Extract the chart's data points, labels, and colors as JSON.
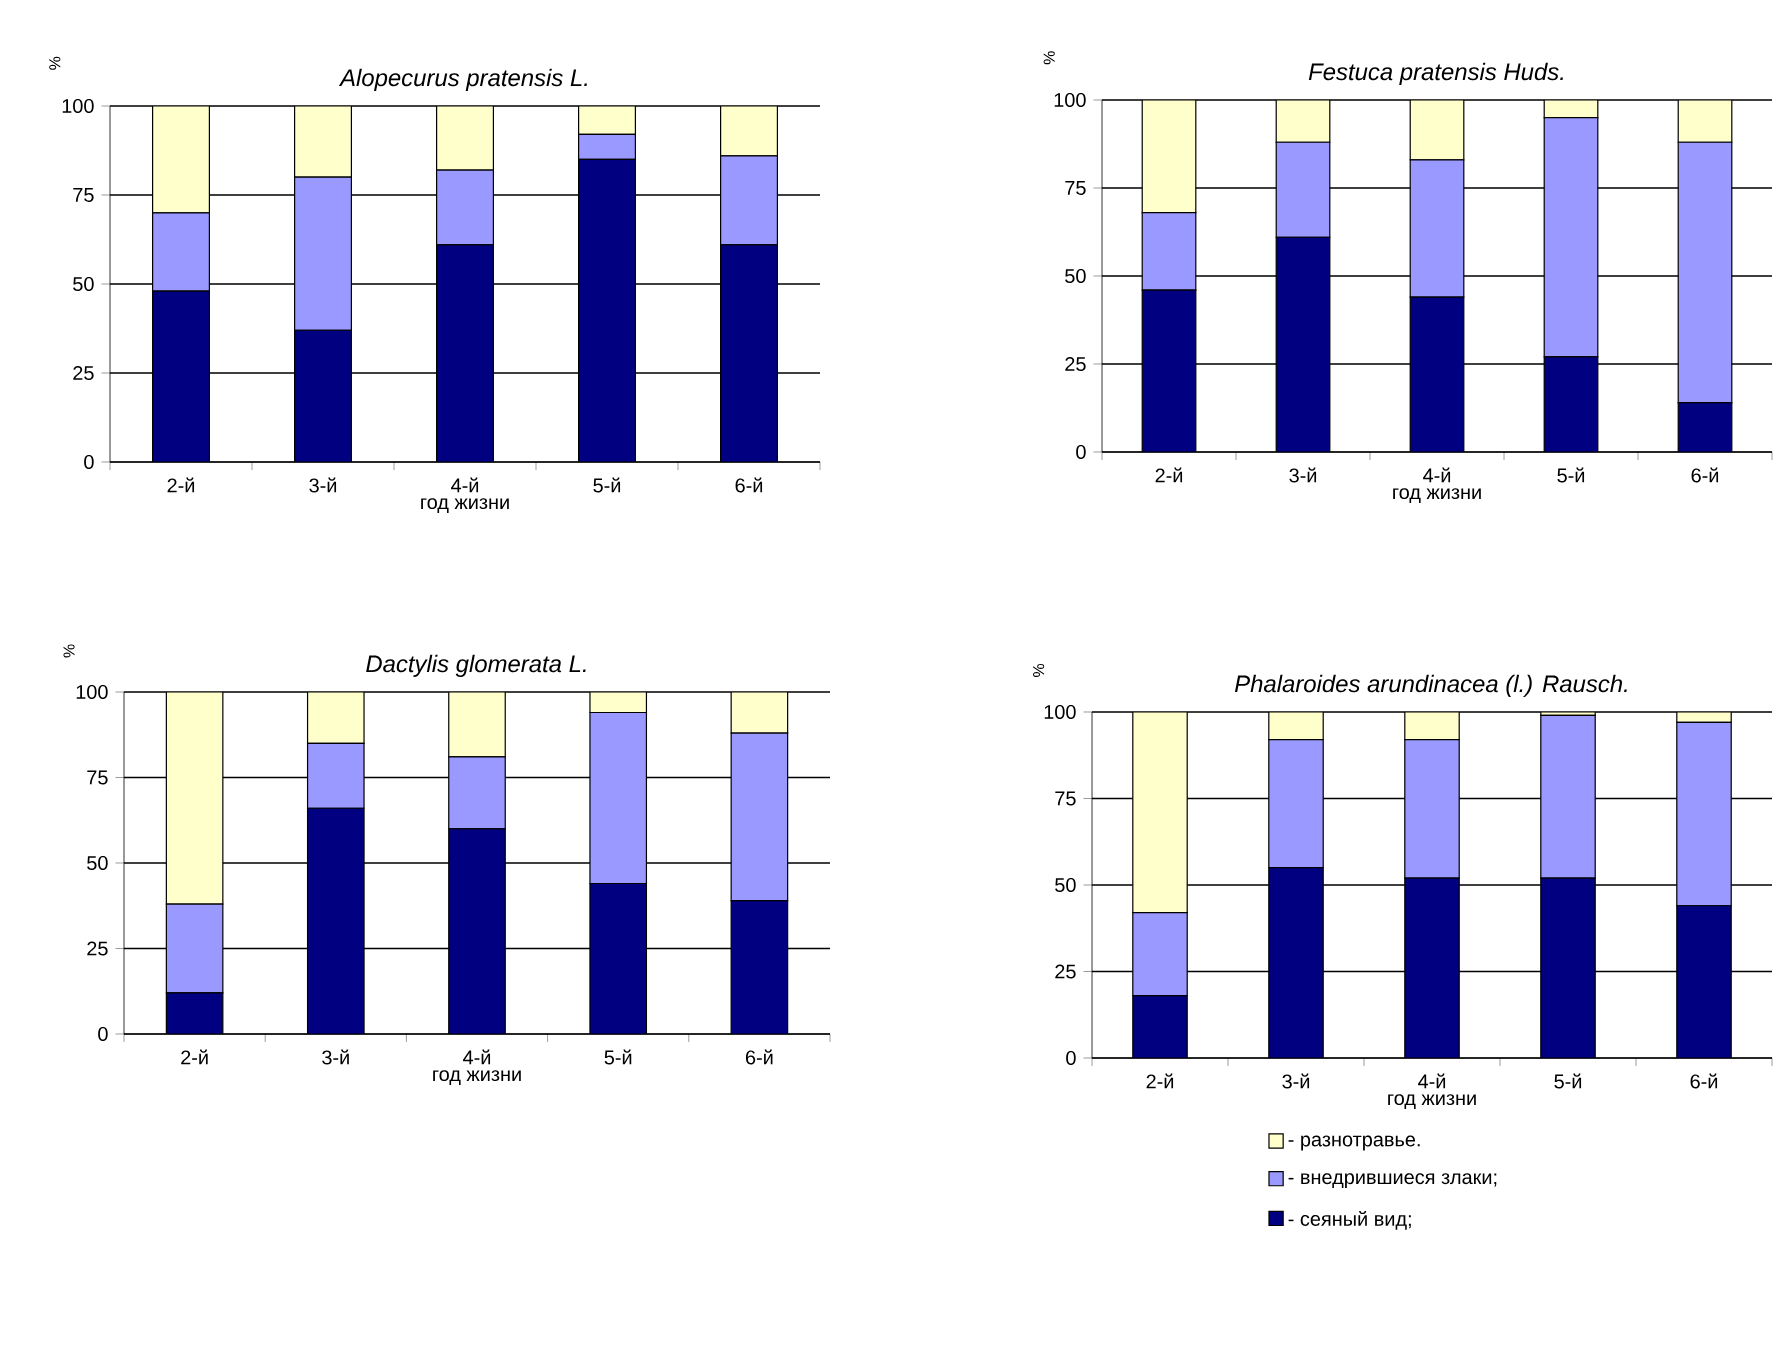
{
  "chart_data": [
    {
      "type": "bar",
      "stacked": true,
      "title": "Alopecurus pratensis L.",
      "xlabel": "год жизни",
      "ylabel": "%",
      "categories": [
        "2-й",
        "3-й",
        "4-й",
        "5-й",
        "6-й"
      ],
      "ylim": [
        0,
        100
      ],
      "yticks": [
        0,
        25,
        50,
        75,
        100
      ],
      "grid": "y",
      "series": [
        {
          "color": "#000080",
          "values": [
            48,
            37,
            61,
            85,
            61
          ]
        },
        {
          "color": "#9999ff",
          "values": [
            22,
            43,
            21,
            7,
            25
          ]
        },
        {
          "color": "#ffffcc",
          "values": [
            30,
            20,
            18,
            8,
            14
          ]
        }
      ]
    },
    {
      "type": "bar",
      "stacked": true,
      "title": "Festuca pratensis Huds.",
      "xlabel": "год жизни",
      "ylabel": "%",
      "categories": [
        "2-й",
        "3-й",
        "4-й",
        "5-й",
        "6-й"
      ],
      "ylim": [
        0,
        100
      ],
      "yticks": [
        0,
        25,
        50,
        75,
        100
      ],
      "grid": "y",
      "series": [
        {
          "color": "#000080",
          "values": [
            46,
            61,
            44,
            27,
            14
          ]
        },
        {
          "color": "#9999ff",
          "values": [
            22,
            27,
            39,
            68,
            74
          ]
        },
        {
          "color": "#ffffcc",
          "values": [
            32,
            12,
            17,
            5,
            12
          ]
        }
      ]
    },
    {
      "type": "bar",
      "stacked": true,
      "title": "Dactylis glomerata L.",
      "xlabel": "год жизни",
      "ylabel": "%",
      "categories": [
        "2-й",
        "3-й",
        "4-й",
        "5-й",
        "6-й"
      ],
      "ylim": [
        0,
        100
      ],
      "yticks": [
        0,
        25,
        50,
        75,
        100
      ],
      "grid": "y",
      "series": [
        {
          "color": "#000080",
          "values": [
            12,
            66,
            60,
            44,
            39
          ]
        },
        {
          "color": "#9999ff",
          "values": [
            26,
            19,
            21,
            50,
            49
          ]
        },
        {
          "color": "#ffffcc",
          "values": [
            62,
            15,
            19,
            6,
            12
          ]
        }
      ]
    },
    {
      "type": "bar",
      "stacked": true,
      "title": "Phalaroides arundinacea (l.) Rausch.",
      "xlabel": "год жизни",
      "ylabel": "%",
      "categories": [
        "2-й",
        "3-й",
        "4-й",
        "5-й",
        "6-й"
      ],
      "ylim": [
        0,
        100
      ],
      "yticks": [
        0,
        25,
        50,
        75,
        100
      ],
      "grid": "y",
      "legend": "bottom",
      "series": [
        {
          "name": "- сеяный вид;",
          "color": "#000080",
          "values": [
            18,
            55,
            52,
            52,
            44
          ]
        },
        {
          "name": "- внедрившиеся злаки;",
          "color": "#9999ff",
          "values": [
            24,
            37,
            40,
            47,
            53
          ]
        },
        {
          "name": "- разнотравье.",
          "color": "#ffffcc",
          "values": [
            58,
            8,
            8,
            1,
            3
          ]
        }
      ]
    }
  ]
}
